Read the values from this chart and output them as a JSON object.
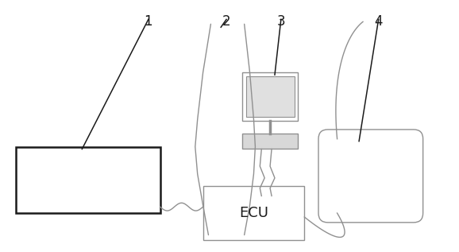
{
  "bg_color": "#ffffff",
  "line_color": "#909090",
  "dark_color": "#1a1a1a",
  "label_color": "#000000",
  "labels": [
    "1",
    "2",
    "3",
    "4"
  ],
  "fig_width": 5.78,
  "fig_height": 3.17
}
